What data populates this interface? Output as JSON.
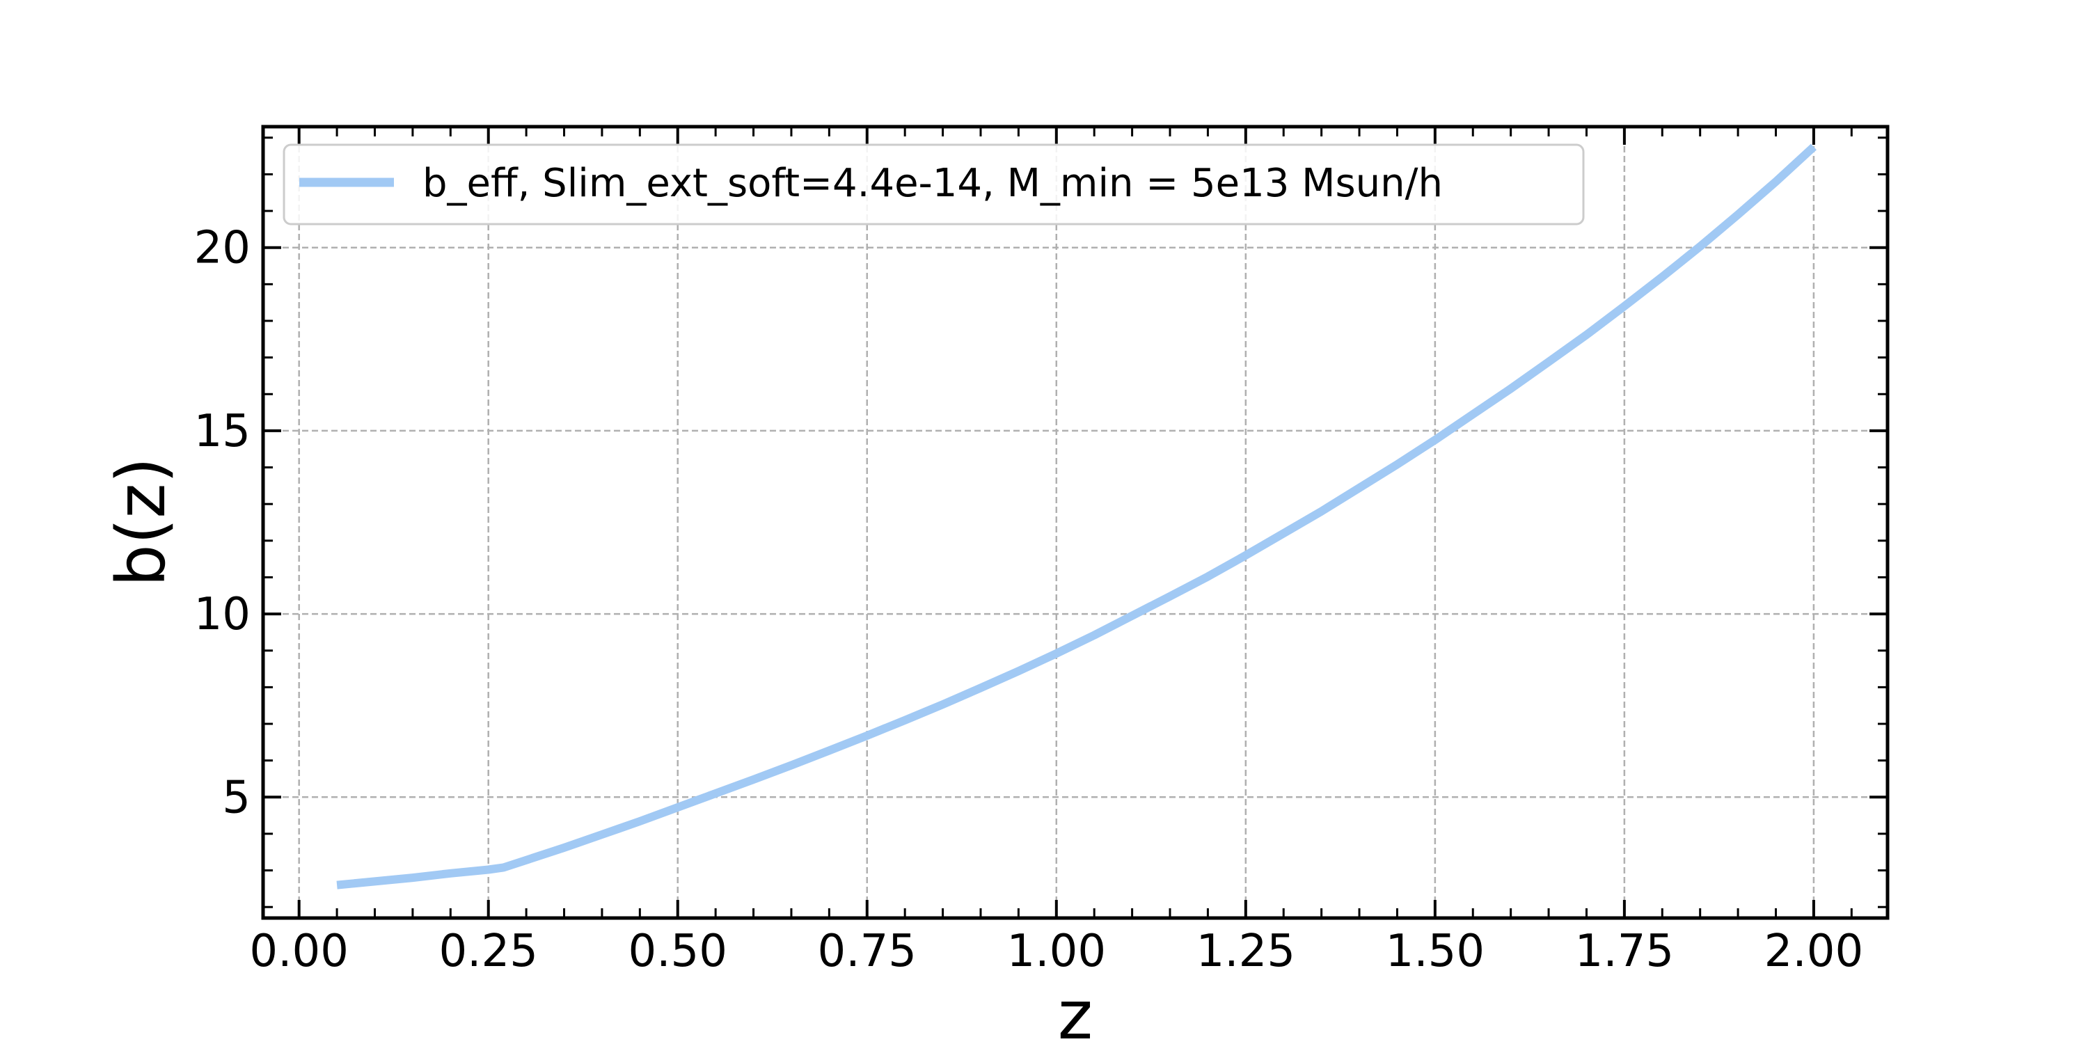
{
  "chart_data": {
    "type": "line",
    "xlabel": "z",
    "ylabel": "b(z)",
    "xlim": [
      -0.0475,
      2.0975
    ],
    "ylim": [
      1.7,
      23.3
    ],
    "x_ticks": [
      0.0,
      0.25,
      0.5,
      0.75,
      1.0,
      1.25,
      1.5,
      1.75,
      2.0
    ],
    "x_tick_labels": [
      "0.00",
      "0.25",
      "0.50",
      "0.75",
      "1.00",
      "1.25",
      "1.50",
      "1.75",
      "2.00"
    ],
    "x_minor_step": 0.05,
    "y_ticks": [
      5,
      10,
      15,
      20
    ],
    "y_tick_labels": [
      "5",
      "10",
      "15",
      "20"
    ],
    "y_minor_step": 1,
    "grid": true,
    "legend_position": "top-left",
    "series": [
      {
        "name": "b_eff, Slim_ext_soft=4.4e-14, M_min = 5e13 Msun/h",
        "color": "#a1c9f4",
        "x": [
          0.05,
          0.1,
          0.15,
          0.2,
          0.25,
          0.27,
          0.3,
          0.35,
          0.4,
          0.45,
          0.5,
          0.55,
          0.6,
          0.65,
          0.7,
          0.75,
          0.8,
          0.85,
          0.9,
          0.95,
          1.0,
          1.05,
          1.1,
          1.15,
          1.2,
          1.25,
          1.3,
          1.35,
          1.4,
          1.45,
          1.5,
          1.55,
          1.6,
          1.65,
          1.7,
          1.75,
          1.8,
          1.85,
          1.9,
          1.95,
          2.0
        ],
        "y": [
          2.6,
          2.7,
          2.8,
          2.92,
          3.02,
          3.08,
          3.28,
          3.62,
          3.98,
          4.34,
          4.72,
          5.1,
          5.48,
          5.87,
          6.27,
          6.68,
          7.1,
          7.53,
          7.98,
          8.44,
          8.92,
          9.42,
          9.95,
          10.48,
          11.02,
          11.6,
          12.2,
          12.8,
          13.44,
          14.08,
          14.75,
          15.45,
          16.15,
          16.88,
          17.62,
          18.4,
          19.2,
          20.03,
          20.9,
          21.8,
          22.75
        ]
      }
    ]
  }
}
